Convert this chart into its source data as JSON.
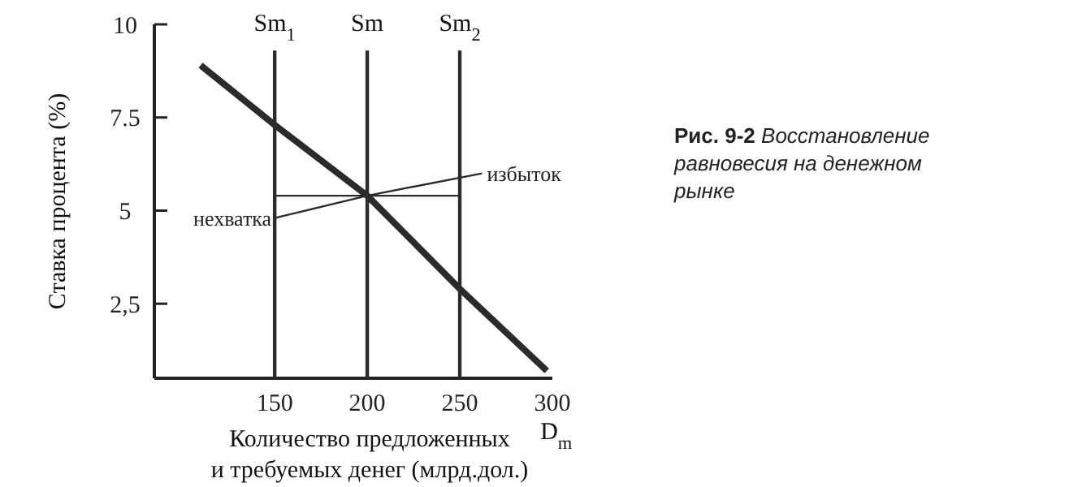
{
  "chart_data": {
    "type": "line",
    "xlabel": "Количество предложенных\nи требуемых денег (млрд.дол.)",
    "ylabel": "Ставка процента (%)",
    "xlim": [
      85,
      300
    ],
    "ylim": [
      0.5,
      10
    ],
    "xticks": [
      150,
      200,
      250,
      300
    ],
    "yticks": [
      {
        "value": 2.5,
        "label": "2,5"
      },
      5,
      7.5,
      10
    ],
    "series": [
      {
        "name": "D$_{m}$",
        "color": "#2b2b2b",
        "x": [
          110,
          150,
          200,
          250,
          297
        ],
        "values": [
          8.9,
          7.3,
          5.4,
          2.9,
          0.7
        ]
      },
      {
        "name": "Sm$_{1}$",
        "color": "#2b2b2b",
        "x": [
          150,
          150
        ],
        "values": [
          0.5,
          9.3
        ]
      },
      {
        "name": "Sm",
        "color": "#2b2b2b",
        "x": [
          200,
          200
        ],
        "values": [
          0.5,
          9.3
        ]
      },
      {
        "name": "Sm$_{2}$",
        "color": "#2b2b2b",
        "x": [
          250,
          250
        ],
        "values": [
          0.5,
          9.3
        ]
      },
      {
        "color": "#2b2b2b",
        "x": [
          150,
          250
        ],
        "values": [
          5.4,
          5.4
        ]
      },
      {
        "color": "#2b2b2b",
        "x": [
          150,
          200,
          262
        ],
        "values": [
          4.8,
          5.4,
          6.0
        ]
      }
    ],
    "annotations": [
      {
        "text": "избыток",
        "x": 262,
        "y": 6.0
      },
      {
        "text": "нехватка",
        "x": 150,
        "y": 4.8
      },
      "Рис. 9-2 Восстановление равновесия на денежном рынке"
    ],
    "grid": false,
    "legend": false,
    "marker": "none",
    "line_style": "solid"
  }
}
